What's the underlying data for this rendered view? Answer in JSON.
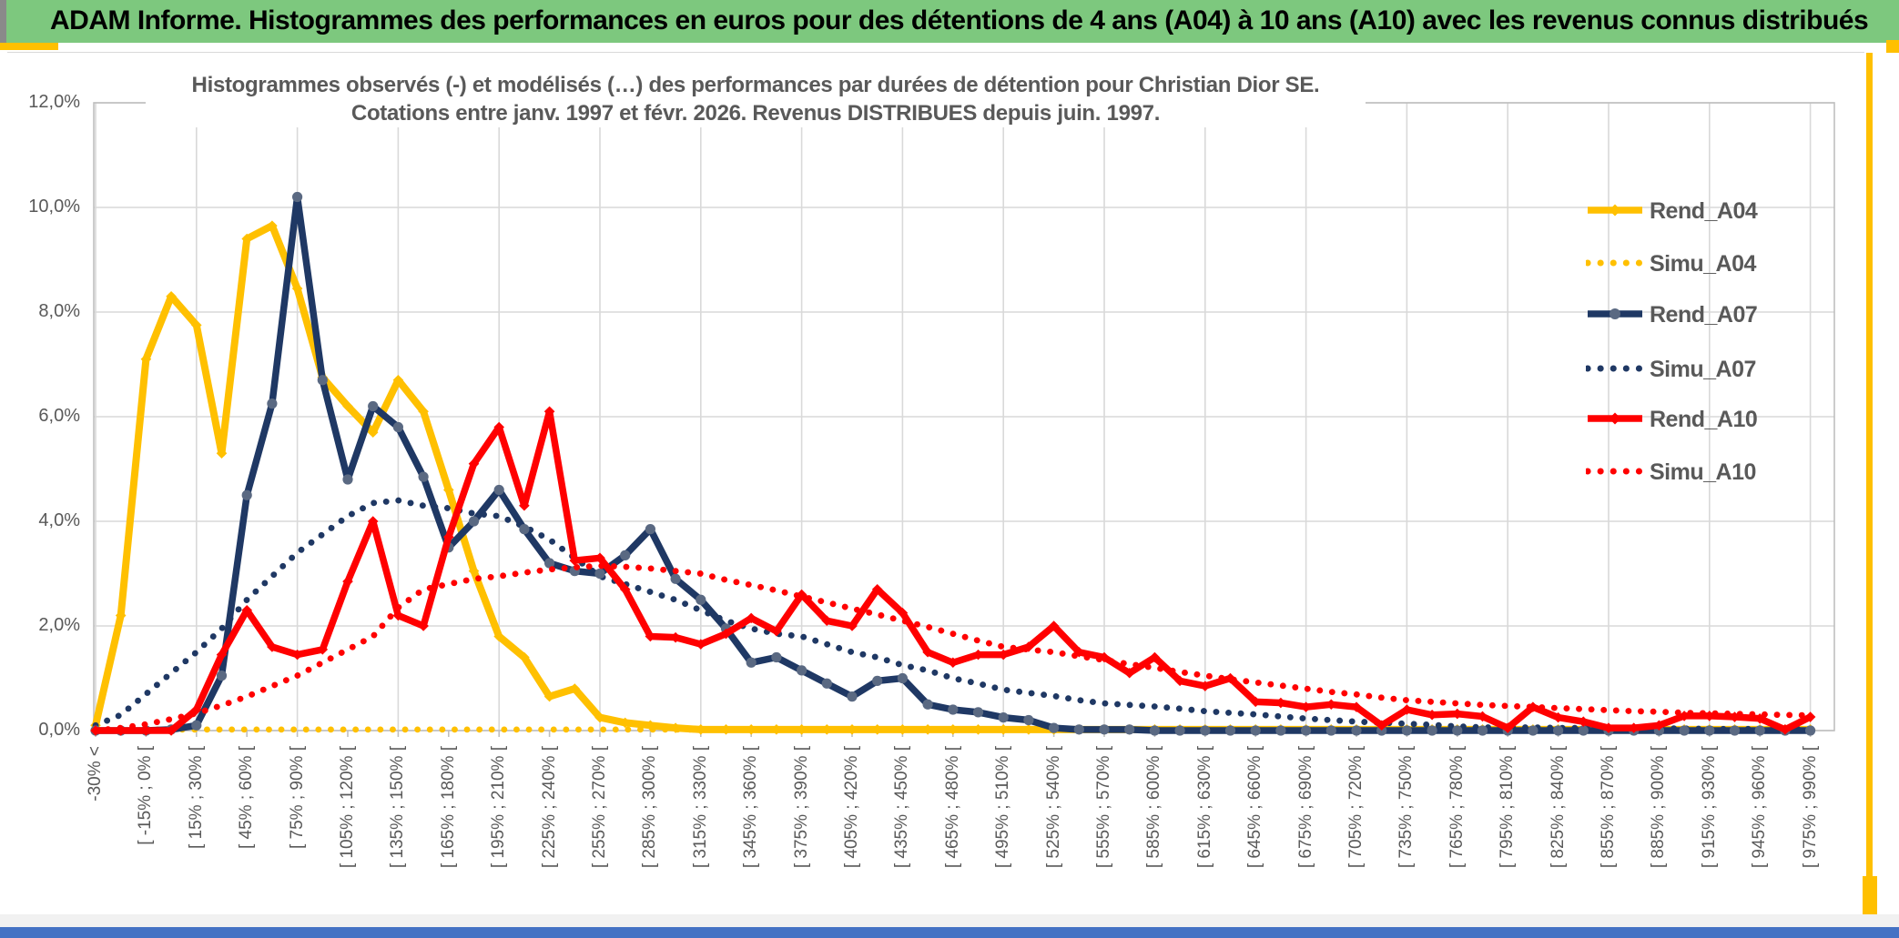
{
  "banner": {
    "title": "ADAM Informe. Histogrammes des performances en euros pour des détentions de 4 ans (A04) à 10 ans (A10) avec les revenus connus distribués",
    "background_color": "#7dc87e",
    "accent_color": "#ffc000",
    "footer_bar_color": "#4472c4"
  },
  "chart_data": {
    "type": "line",
    "title_line1": "Histogrammes observés (-) et modélisés (…) des performances par durées de détention pour Christian Dior SE.",
    "title_line2": "Cotations entre janv. 1997 et févr. 2026. Revenus DISTRIBUES depuis juin. 1997.",
    "y_axis": {
      "ticks": [
        "12,0%",
        "10,0%",
        "8,0%",
        "6,0%",
        "4,0%",
        "2,0%",
        "0,0%"
      ],
      "min": 0,
      "max": 12,
      "step_pct": 2
    },
    "x_axis": {
      "total_bins": 69,
      "labeled_every": 2,
      "grid_every_bins": 4,
      "labels": [
        "-30% <",
        "[ -15% ; 0% [",
        "[ 15% ; 30% [",
        "[ 45% ; 60% [",
        "[ 75% ; 90% [",
        "[ 105% ; 120% [",
        "[ 135% ; 150% [",
        "[ 165% ; 180% [",
        "[ 195% ; 210% [",
        "[ 225% ; 240% [",
        "[ 255% ; 270% [",
        "[ 285% ; 300% [",
        "[ 315% ; 330% [",
        "[ 345% ; 360% [",
        "[ 375% ; 390% [",
        "[ 405% ; 420% [",
        "[ 435% ; 450% [",
        "[ 465% ; 480% [",
        "[ 495% ; 510% [",
        "[ 525% ; 540% [",
        "[ 555% ; 570% [",
        "[ 585% ; 600% [",
        "[ 615% ; 630% [",
        "[ 645% ; 660% [",
        "[ 675% ; 690% [",
        "[ 705% ; 720% [",
        "[ 735% ; 750% [",
        "[ 765% ; 780% [",
        "[ 795% ; 810% [",
        "[ 825% ; 840% [",
        "[ 855% ; 870% [",
        "[ 885% ; 900% [",
        "[ 915% ; 930% [",
        "[ 945% ; 960% [",
        "[ 975% ; 990% ["
      ]
    },
    "series": [
      {
        "name": "Simu_A04",
        "style": "dotted",
        "color": "#ffc000",
        "marker": "none",
        "values": [
          0.02,
          0.02,
          0.02,
          0.02,
          0.02,
          0.02,
          0.02,
          0.02,
          0.02,
          0.02,
          0.02,
          0.02,
          0.02,
          0.02,
          0.02,
          0.02,
          0.02,
          0.02,
          0.02,
          0.02,
          0.02,
          0.02,
          0.02,
          0.02,
          0.02,
          0.02,
          0.02,
          0.02,
          0.02,
          0.02,
          0.02,
          0.02,
          0.02,
          0.02,
          0.02,
          0.02,
          0.02,
          0.02,
          0.02,
          0.02,
          0.02,
          0.02,
          0.02,
          0.02,
          0.02,
          0.02,
          0.02,
          0.02,
          0.02,
          0.02,
          0.02,
          0.02,
          0.02,
          0.02,
          0.02,
          0.02,
          0.02,
          0.02,
          0.02,
          0.02,
          0.02,
          0.02,
          0.02,
          0.02,
          0.02,
          0.02,
          0.02,
          0.02,
          0.02
        ]
      },
      {
        "name": "Rend_A04",
        "style": "solid",
        "color": "#ffc000",
        "marker": "diamond",
        "marker_color": "#ffc000",
        "values": [
          0.1,
          2.2,
          7.1,
          8.3,
          7.75,
          5.3,
          9.4,
          9.65,
          8.45,
          6.75,
          6.2,
          5.7,
          6.7,
          6.1,
          4.6,
          3.05,
          1.8,
          1.4,
          0.65,
          0.8,
          0.25,
          0.15,
          0.1,
          0.05,
          0.02,
          0.02,
          0.02,
          0.02,
          0.02,
          0.02,
          0.02,
          0.02,
          0.02,
          0.02,
          0.02,
          0.02,
          0.02,
          0.02,
          0.02,
          0.02,
          0.02,
          0.02,
          0.02,
          0.02,
          0.02,
          0.02,
          0.02,
          0.02,
          0.02,
          0.02,
          0.02,
          0.02,
          0.02,
          0.02,
          0.02,
          0.02,
          0.02,
          0.02,
          0.02,
          0.02,
          0.02,
          0.02,
          0.02,
          0.02,
          0.02,
          0.02,
          0.02,
          0.02,
          0.02
        ]
      },
      {
        "name": "Simu_A07",
        "style": "dotted",
        "color": "#1f3864",
        "marker": "none",
        "values": [
          0.1,
          0.3,
          0.7,
          1.1,
          1.5,
          1.95,
          2.5,
          2.95,
          3.4,
          3.75,
          4.1,
          4.35,
          4.4,
          4.3,
          4.25,
          4.15,
          4.1,
          3.9,
          3.65,
          3.3,
          2.95,
          2.8,
          2.65,
          2.5,
          2.3,
          2.1,
          1.95,
          1.85,
          1.8,
          1.65,
          1.5,
          1.4,
          1.25,
          1.15,
          1.0,
          0.9,
          0.78,
          0.72,
          0.66,
          0.58,
          0.52,
          0.49,
          0.46,
          0.42,
          0.37,
          0.34,
          0.31,
          0.27,
          0.23,
          0.2,
          0.17,
          0.15,
          0.13,
          0.11,
          0.08,
          0.06,
          0.06,
          0.06,
          0.05,
          0.05,
          0.05,
          0.04,
          0.04,
          0.04,
          0.03,
          0.03,
          0.03,
          0.03,
          0.03
        ]
      },
      {
        "name": "Rend_A07",
        "style": "solid",
        "color": "#1f3864",
        "marker": "circle",
        "marker_color": "#5a6982",
        "values": [
          0.0,
          0.0,
          0.0,
          0.02,
          0.1,
          1.05,
          4.5,
          6.25,
          10.2,
          6.7,
          4.8,
          6.2,
          5.8,
          4.85,
          3.5,
          4.0,
          4.6,
          3.85,
          3.2,
          3.05,
          3.0,
          3.35,
          3.85,
          2.9,
          2.5,
          1.95,
          1.3,
          1.4,
          1.15,
          0.9,
          0.65,
          0.95,
          1.0,
          0.5,
          0.4,
          0.35,
          0.25,
          0.2,
          0.05,
          0.02,
          0.02,
          0.02,
          0.0,
          0.0,
          0.0,
          0.0,
          0.0,
          0.0,
          0.0,
          0.0,
          0.0,
          0.0,
          0.0,
          0.0,
          0.0,
          0.0,
          0.0,
          0.0,
          0.0,
          0.0,
          0.0,
          0.0,
          0.0,
          0.0,
          0.0,
          0.0,
          0.0,
          0.0,
          0.0
        ]
      },
      {
        "name": "Simu_A10",
        "style": "dotted",
        "color": "#ff0000",
        "marker": "none",
        "values": [
          0.0,
          0.05,
          0.12,
          0.22,
          0.33,
          0.48,
          0.65,
          0.85,
          1.05,
          1.3,
          1.55,
          1.8,
          2.35,
          2.7,
          2.8,
          2.9,
          2.95,
          3.02,
          3.08,
          3.12,
          3.15,
          3.13,
          3.1,
          3.05,
          3.0,
          2.88,
          2.78,
          2.68,
          2.56,
          2.45,
          2.33,
          2.22,
          2.1,
          1.98,
          1.85,
          1.72,
          1.6,
          1.55,
          1.5,
          1.42,
          1.35,
          1.27,
          1.2,
          1.12,
          1.05,
          0.98,
          0.92,
          0.86,
          0.8,
          0.74,
          0.69,
          0.63,
          0.58,
          0.55,
          0.52,
          0.49,
          0.47,
          0.45,
          0.43,
          0.41,
          0.39,
          0.37,
          0.36,
          0.34,
          0.33,
          0.32,
          0.31,
          0.3,
          0.29
        ]
      },
      {
        "name": "Rend_A10",
        "style": "solid",
        "color": "#ff0000",
        "marker": "diamond",
        "marker_color": "#ff0000",
        "values": [
          0.0,
          0.0,
          0.0,
          0.0,
          0.4,
          1.45,
          2.3,
          1.6,
          1.45,
          1.55,
          2.85,
          4.0,
          2.2,
          2.0,
          3.7,
          5.1,
          5.8,
          4.3,
          6.1,
          3.25,
          3.3,
          2.7,
          1.8,
          1.78,
          1.65,
          1.85,
          2.15,
          1.9,
          2.6,
          2.1,
          2.0,
          2.7,
          2.25,
          1.5,
          1.3,
          1.45,
          1.45,
          1.6,
          2.0,
          1.5,
          1.4,
          1.1,
          1.4,
          0.95,
          0.85,
          1.0,
          0.55,
          0.53,
          0.45,
          0.5,
          0.45,
          0.1,
          0.4,
          0.3,
          0.32,
          0.27,
          0.05,
          0.45,
          0.25,
          0.17,
          0.05,
          0.05,
          0.1,
          0.28,
          0.28,
          0.26,
          0.23,
          0.02,
          0.26
        ]
      }
    ],
    "legend": {
      "position": "right",
      "order": [
        "Rend_A04",
        "Simu_A04",
        "Rend_A07",
        "Simu_A07",
        "Rend_A10",
        "Simu_A10"
      ]
    },
    "grid_color": "#d9d9d9",
    "axis_color": "#bfbfbf",
    "text_color": "#595959"
  }
}
